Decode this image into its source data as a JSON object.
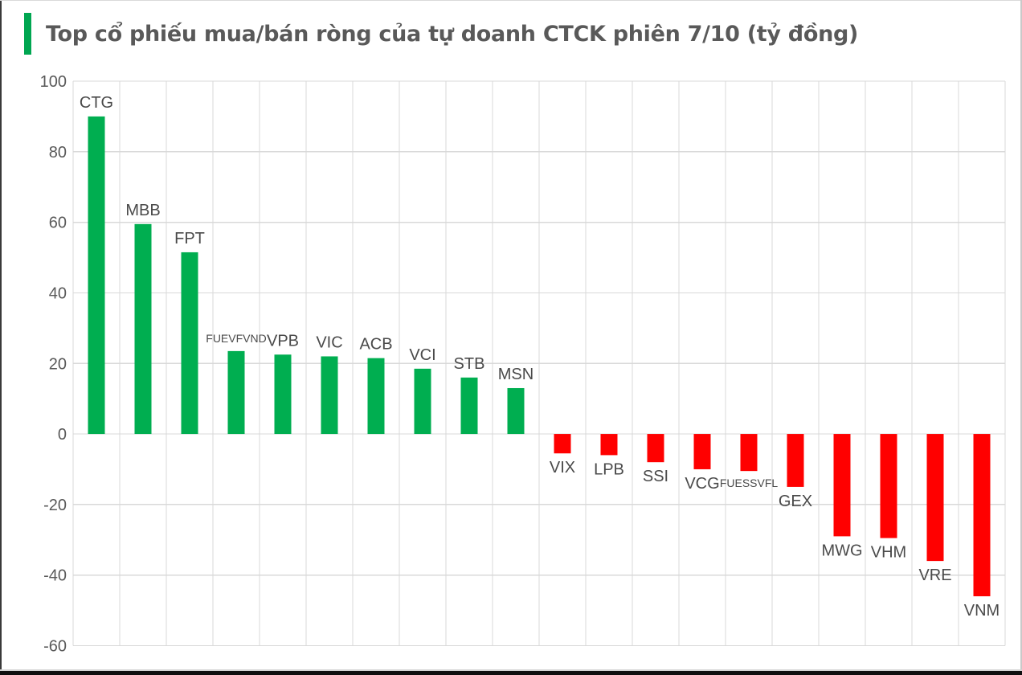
{
  "header": {
    "title": "Top cổ phiếu mua/bán ròng của tự doanh CTCK phiên 7/10 (tỷ đồng)",
    "accent_color": "#00A651",
    "title_color": "#595959"
  },
  "chart_data": {
    "type": "bar",
    "title": "Top cổ phiếu mua/bán ròng của tự doanh CTCK phiên 7/10 (tỷ đồng)",
    "unit": "tỷ đồng",
    "categories": [
      "CTG",
      "MBB",
      "FPT",
      "FUEVFVND",
      "VPB",
      "VIC",
      "ACB",
      "VCI",
      "STB",
      "MSN",
      "VIX",
      "LPB",
      "SSI",
      "VCG",
      "FUESSVFL",
      "GEX",
      "MWG",
      "VHM",
      "VRE",
      "VNM"
    ],
    "values": [
      90,
      59.5,
      51.5,
      23.5,
      22.5,
      22,
      21.5,
      18.5,
      16,
      13,
      -5.5,
      -6,
      -8,
      -10,
      -10.5,
      -15,
      -29,
      -29.5,
      -36,
      -46
    ],
    "xlabel": "",
    "ylabel": "",
    "ylim": [
      -60,
      100
    ],
    "yticks": [
      100,
      80,
      60,
      40,
      20,
      0,
      -20,
      -40,
      -60
    ],
    "grid": true,
    "legend": "none",
    "colors": {
      "positive": "#00AE50",
      "negative": "#FF0000",
      "gridline": "#D9D9D9",
      "tick_label": "#595959",
      "bar_label": "#4a4a4a"
    }
  }
}
